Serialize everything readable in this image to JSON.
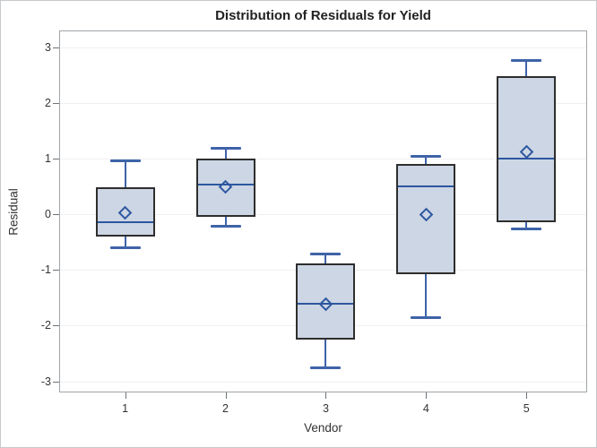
{
  "chart_data": {
    "type": "box",
    "title": "Distribution of Residuals for Yield",
    "xlabel": "Vendor",
    "ylabel": "Residual",
    "categories": [
      "1",
      "2",
      "3",
      "4",
      "5"
    ],
    "y_ticks": [
      3,
      2,
      1,
      0,
      -1,
      -2,
      -3
    ],
    "ylim": [
      -3.2,
      3.3
    ],
    "grid": "horizontal",
    "legend": "none",
    "series": [
      {
        "vendor": "1",
        "low": -0.6,
        "q1": -0.4,
        "median": -0.15,
        "q3": 0.48,
        "high": 0.97,
        "mean": 0.03
      },
      {
        "vendor": "2",
        "low": -0.2,
        "q1": -0.05,
        "median": 0.53,
        "q3": 1.0,
        "high": 1.2,
        "mean": 0.5
      },
      {
        "vendor": "3",
        "low": -2.75,
        "q1": -2.25,
        "median": -1.6,
        "q3": -0.88,
        "high": -0.7,
        "mean": -1.62
      },
      {
        "vendor": "4",
        "low": -1.85,
        "q1": -1.08,
        "median": 0.5,
        "q3": 0.9,
        "high": 1.05,
        "mean": 0.0
      },
      {
        "vendor": "5",
        "low": -0.25,
        "q1": -0.15,
        "median": 1.0,
        "q3": 2.48,
        "high": 2.77,
        "mean": 1.12
      }
    ],
    "colors": {
      "box_fill": "#cdd6e4",
      "box_border": "#2e2e2e",
      "whisker": "#3e63a8",
      "median": "#2c57a0",
      "mean_marker": "#2c57a0",
      "gridline": "#f0f0f1",
      "plot_frame": "#a0a5a9",
      "text": "#333333",
      "title_text": "#222222"
    },
    "mean_marker_shape": "diamond-outline"
  }
}
